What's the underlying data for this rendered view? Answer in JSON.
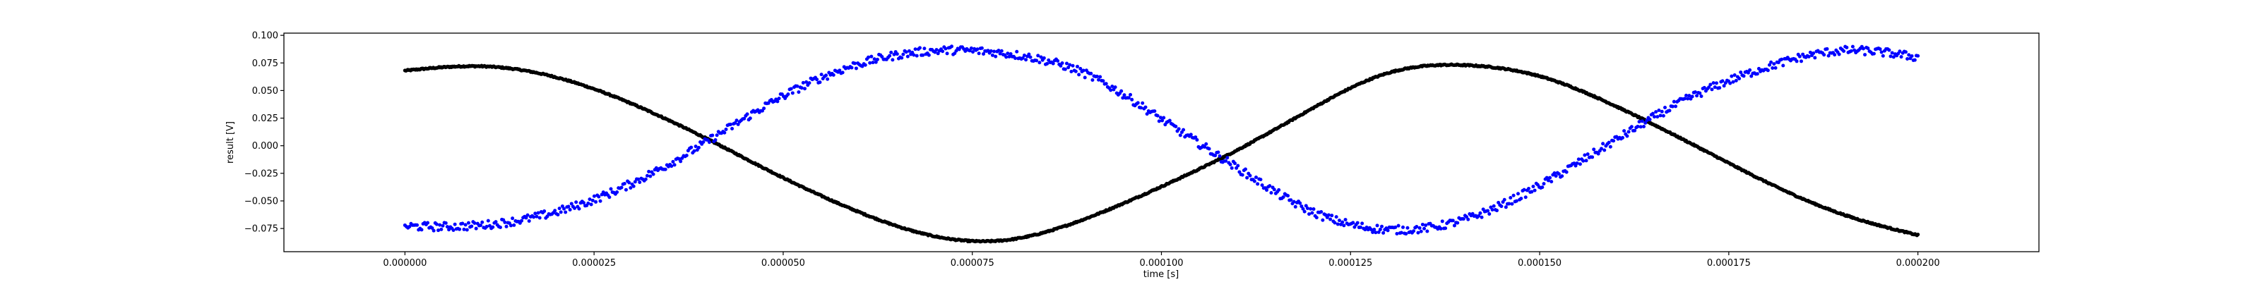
{
  "chart_data": {
    "type": "scatter",
    "xlabel": "time [s]",
    "ylabel": "result [V]",
    "xlim": [
      -1.6e-05,
      0.000216
    ],
    "ylim": [
      -0.096,
      0.102
    ],
    "grid": false,
    "x_ticks": [
      0.0,
      2.5e-05,
      5e-05,
      7.5e-05,
      0.0001,
      0.000125,
      0.00015,
      0.000175,
      0.0002
    ],
    "x_tick_labels": [
      "0.000000",
      "0.000025",
      "0.000050",
      "0.000075",
      "0.000100",
      "0.000125",
      "0.000150",
      "0.000175",
      "0.000200"
    ],
    "y_ticks": [
      -0.075,
      -0.05,
      -0.025,
      0.0,
      0.025,
      0.05,
      0.075,
      0.1
    ],
    "y_tick_labels": [
      "−0.075",
      "−0.050",
      "−0.025",
      "0.000",
      "0.025",
      "0.050",
      "0.075",
      "0.100"
    ],
    "series": [
      {
        "color": "#000000",
        "x": [
          0.0,
          1e-05,
          2e-05,
          3e-05,
          4e-05,
          5e-05,
          6e-05,
          7e-05,
          8e-05,
          9e-05,
          0.0001,
          0.00011,
          0.00012,
          0.00013,
          0.00014,
          0.00015,
          0.00016,
          0.00017,
          0.00018,
          0.00019,
          0.0002
        ],
        "y": [
          0.068,
          0.072,
          0.062,
          0.038,
          0.006,
          -0.029,
          -0.06,
          -0.082,
          -0.085,
          -0.066,
          -0.037,
          -0.004,
          0.034,
          0.066,
          0.073,
          0.063,
          0.036,
          0.002,
          -0.033,
          -0.062,
          -0.081
        ]
      },
      {
        "color": "#0000ff",
        "x": [
          0.0,
          1e-05,
          2e-05,
          3e-05,
          4e-05,
          5e-05,
          6e-05,
          7e-05,
          8e-05,
          9e-05,
          0.0001,
          0.00011,
          0.00012,
          0.00013,
          0.00014,
          0.00015,
          0.00016,
          0.00017,
          0.00018,
          0.00019,
          0.0002
        ],
        "y": [
          -0.073,
          -0.072,
          -0.06,
          -0.034,
          0.004,
          0.045,
          0.074,
          0.086,
          0.083,
          0.065,
          0.024,
          -0.02,
          -0.06,
          -0.076,
          -0.067,
          -0.036,
          0.005,
          0.044,
          0.071,
          0.086,
          0.08
        ]
      }
    ]
  }
}
